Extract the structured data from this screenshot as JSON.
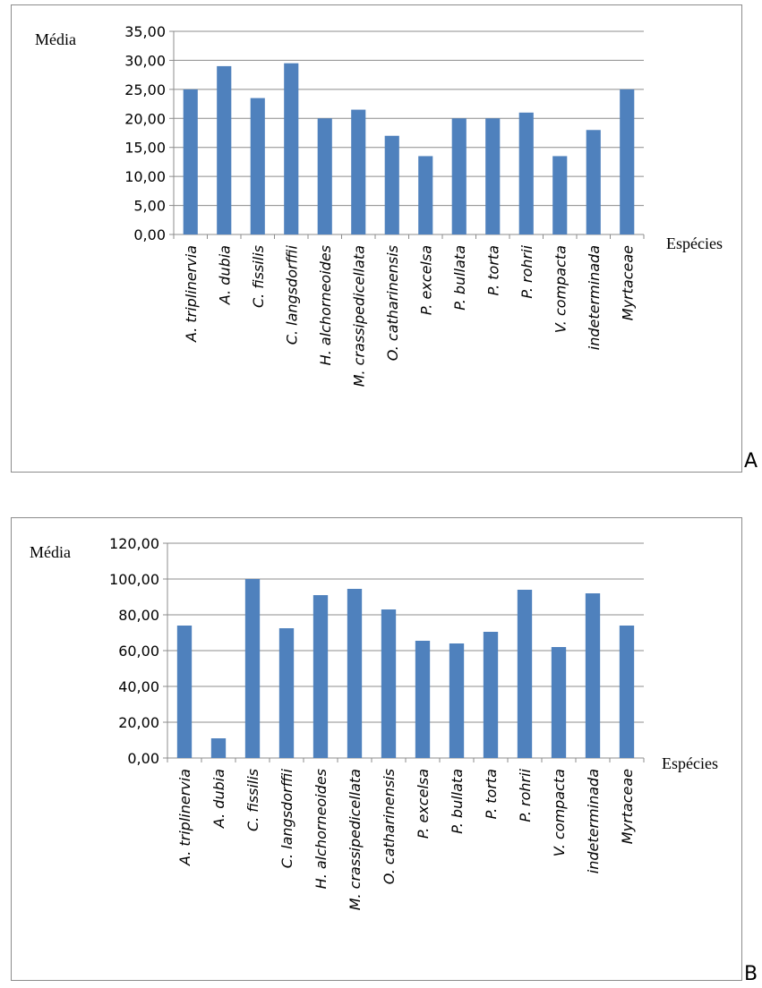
{
  "chart_data": [
    {
      "type": "bar",
      "panel_label": "A",
      "ylabel": "Média",
      "xlabel": "Espécies",
      "ylim": [
        0,
        35
      ],
      "yticks": [
        "0,00",
        "5,00",
        "10,00",
        "15,00",
        "20,00",
        "25,00",
        "30,00",
        "35,00"
      ],
      "grid": true,
      "legend": "none",
      "color": "#4f81bd",
      "categories": [
        "A. triplinervia",
        "A. dubia",
        "C. fissilis",
        "C. langsdorffii",
        "H. alchorneoides",
        "M. crassipedicellata",
        "O. catharinensis",
        "P. excelsa",
        "P. bullata",
        "P. torta",
        "P. rohrii",
        "V. compacta",
        "indeterminada",
        "Myrtaceae"
      ],
      "values": [
        25.0,
        29.0,
        23.5,
        29.5,
        20.0,
        21.5,
        17.0,
        13.5,
        20.0,
        20.0,
        21.0,
        13.5,
        18.0,
        25.0
      ]
    },
    {
      "type": "bar",
      "panel_label": "B",
      "ylabel": "Média",
      "xlabel": "Espécies",
      "ylim": [
        0,
        120
      ],
      "yticks": [
        "0,00",
        "20,00",
        "40,00",
        "60,00",
        "80,00",
        "100,00",
        "120,00"
      ],
      "grid": true,
      "legend": "none",
      "color": "#4f81bd",
      "categories": [
        "A. triplinervia",
        "A. dubia",
        "C. fissilis",
        "C. langsdorffii",
        "H. alchorneoides",
        "M. crassipedicellata",
        "O. catharinensis",
        "P. excelsa",
        "P. bullata",
        "P. torta",
        "P. rohrii",
        "V. compacta",
        "indeterminada",
        "Myrtaceae"
      ],
      "values": [
        74,
        11,
        100,
        72.5,
        91,
        94.5,
        83,
        65.5,
        64,
        70.5,
        94,
        62,
        92,
        74
      ]
    }
  ]
}
